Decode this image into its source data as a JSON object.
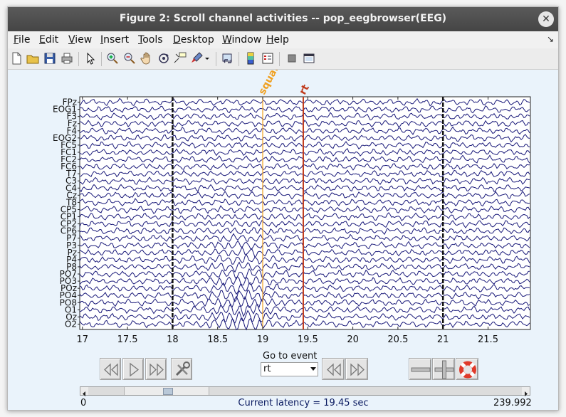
{
  "window": {
    "title": "Figure 2: Scroll channel activities -- pop_eegbrowser(EEG)"
  },
  "menu": {
    "items": [
      {
        "label": "File",
        "underline": "F",
        "rest": "ile"
      },
      {
        "label": "Edit",
        "underline": "E",
        "rest": "dit"
      },
      {
        "label": "View",
        "underline": "V",
        "rest": "iew"
      },
      {
        "label": "Insert",
        "underline": "I",
        "rest": "nsert"
      },
      {
        "label": "Tools",
        "underline": "T",
        "rest": "ools"
      },
      {
        "label": "Desktop",
        "underline": "D",
        "rest": "esktop"
      },
      {
        "label": "Window",
        "underline": "W",
        "rest": "indow"
      },
      {
        "label": "Help",
        "underline": "H",
        "rest": "elp"
      }
    ],
    "overflow_icon": "↘"
  },
  "toolbar": {
    "icons": [
      "new-file-icon",
      "open-folder-icon",
      "save-icon",
      "print-icon",
      "pointer-icon",
      "zoom-in-icon",
      "zoom-out-icon",
      "pan-hand-icon",
      "rotate-3d-icon",
      "data-cursor-icon",
      "brush-icon",
      "brush-dropdown-icon",
      "link-plot-icon",
      "colorbar-icon",
      "legend-icon",
      "hide-plot-tools-icon",
      "show-plot-tools-icon"
    ]
  },
  "chart_data": {
    "type": "line",
    "channels": [
      "FPz",
      "EOG1",
      "F3",
      "Fz",
      "F4",
      "EOG2",
      "FC5",
      "FC1",
      "FC2",
      "FC6",
      "T7",
      "C3",
      "C4",
      "Cz",
      "T8",
      "CP5",
      "CP1",
      "CP2",
      "CP6",
      "P7",
      "P3",
      "Pz",
      "P4",
      "P8",
      "PO7",
      "PO3",
      "POz",
      "PO4",
      "PO8",
      "O1",
      "Oz",
      "O2"
    ],
    "x_ticks": [
      "17",
      "17.5",
      "18",
      "18.5",
      "19",
      "19.5",
      "20",
      "20.5",
      "21",
      "21.5"
    ],
    "xlim": [
      16.97,
      21.97
    ],
    "epoch_boundaries": [
      18,
      21
    ],
    "events": [
      {
        "label": "squar",
        "latency": 19.0,
        "color": "#f0a020"
      },
      {
        "label": "rt",
        "latency": 19.45,
        "color": "#c0391b"
      }
    ],
    "trace_color": "#1a1a7a"
  },
  "controls": {
    "goto_event_label": "Go to event",
    "event_select_value": "rt",
    "scroll_min": "0",
    "scroll_max": "239.992",
    "latency_text": "Current latency = 19.45 sec"
  }
}
